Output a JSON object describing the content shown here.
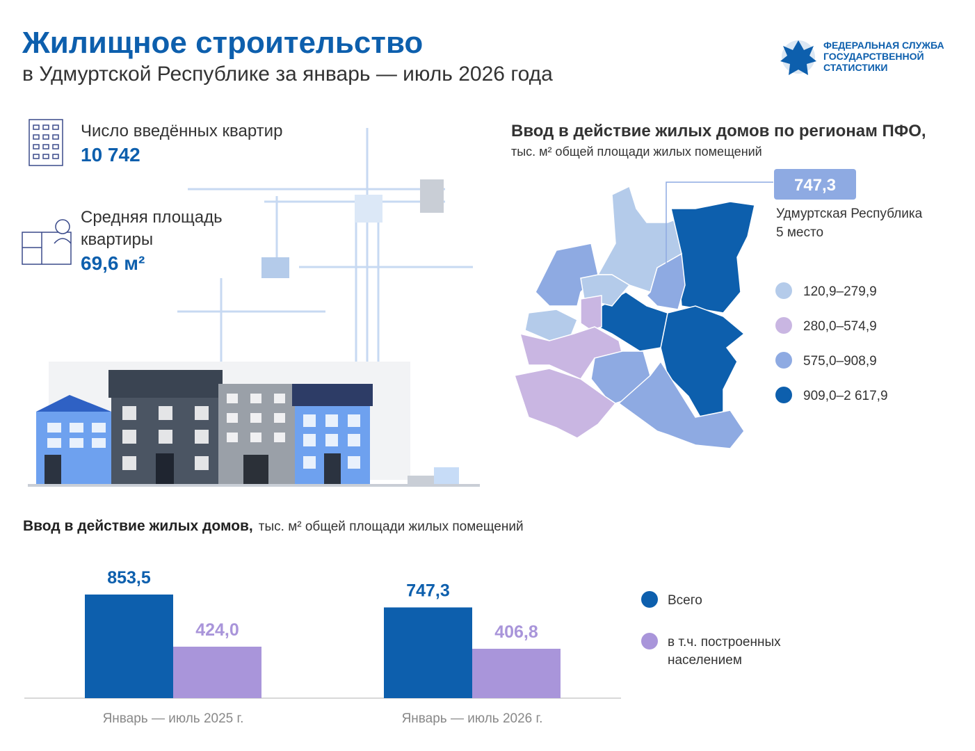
{
  "header": {
    "title": "Жилищное строительство",
    "subtitle": "в Удмуртской Республике за январь — июль 2026 года",
    "logo": [
      "ФЕДЕРАЛЬНАЯ СЛУЖБА",
      "ГОСУДАРСТВЕННОЙ",
      "СТАТИСТИКИ"
    ]
  },
  "stats": [
    {
      "label": [
        "Число введённых квартир"
      ],
      "value": "10 742"
    },
    {
      "label": [
        "Средняя площадь",
        "квартиры"
      ],
      "value": "69,6 м²"
    }
  ],
  "map": {
    "title": "Ввод в действие жилых домов по регионам ПФО,",
    "subtitle": "тыс. м² общей площади жилых помещений",
    "callout": {
      "value": "747,3",
      "region": "Удмуртская Республика",
      "rank": "5 место"
    },
    "legend": [
      {
        "label": "120,9–279,9",
        "color": "#b4cbea"
      },
      {
        "label": "280,0–574,9",
        "color": "#c9b6e2"
      },
      {
        "label": "575,0–908,9",
        "color": "#8eaae2"
      },
      {
        "label": "909,0–2 617,9",
        "color": "#0d5fad"
      }
    ]
  },
  "chart_data": {
    "type": "bar",
    "title": "Ввод в действие жилых домов,",
    "subtitle": "тыс. м² общей площади жилых помещений",
    "categories": [
      "Январь — июль 2025 г.",
      "Январь — июль 2026 г."
    ],
    "series": [
      {
        "name": "Всего",
        "color": "#0d5fad",
        "values": [
          853.5,
          747.3
        ],
        "value_labels": [
          "853,5",
          "747,3"
        ]
      },
      {
        "name": "в т.ч. построенных населением",
        "color": "#a995da",
        "values": [
          424.0,
          406.8
        ],
        "value_labels": [
          "424,0",
          "406,8"
        ]
      }
    ]
  }
}
